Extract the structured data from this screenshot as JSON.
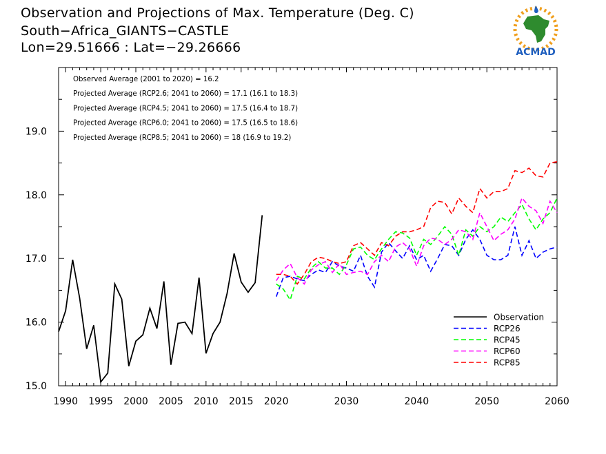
{
  "title": {
    "line1": "Observation and Projections of Max. Temperature (Deg. C)",
    "line2": "South−Africa_GIANTS−CASTLE",
    "line3": "Lon=29.51666 : Lat=−29.26666"
  },
  "logo": {
    "text": "ACMAD",
    "icon": "acmad-africa-logo"
  },
  "colors": {
    "Observation": "#000000",
    "RCP26": "#0000ff",
    "RCP45": "#00ff00",
    "RCP60": "#ff00ff",
    "RCP85": "#ff0000",
    "logo_orange": "#f0a020",
    "logo_green": "#2e8b2e",
    "logo_blue": "#1f5fbf"
  },
  "chart_data": {
    "type": "line",
    "xlim": [
      1989,
      2060
    ],
    "ylim": [
      15.0,
      20.0
    ],
    "x_ticks": [
      1990,
      1995,
      2000,
      2005,
      2010,
      2015,
      2020,
      2030,
      2040,
      2050,
      2060
    ],
    "y_ticks": [
      "15.0",
      "16.0",
      "17.0",
      "18.0",
      "19.0"
    ],
    "grid": false,
    "legend_position": "bottom-right",
    "annotations": [
      "Observed Average (2001 to 2020) = 16.2",
      "Projected Average (RCP2.6; 2041 to 2060) = 17.1 (16.1 to 18.3)",
      "Projected Average (RCP4.5; 2041 to 2060) = 17.5 (16.4 to 18.7)",
      "Projected Average (RCP6.0; 2041 to 2060) = 17.5 (16.5 to 18.6)",
      "Projected Average (RCP8.5; 2041 to 2060) = 18 (16.9 to 19.2)"
    ],
    "series": [
      {
        "name": "Observation",
        "style": "solid",
        "x": [
          1989,
          1990,
          1991,
          1992,
          1993,
          1994,
          1995,
          1996,
          1997,
          1998,
          1999,
          2000,
          2001,
          2002,
          2003,
          2004,
          2005,
          2006,
          2007,
          2008,
          2009,
          2010,
          2011,
          2012,
          2013,
          2014,
          2015,
          2016,
          2017,
          2018,
          2019
        ],
        "y": [
          15.85,
          16.18,
          16.98,
          16.38,
          15.58,
          15.95,
          15.06,
          15.2,
          16.6,
          16.36,
          15.31,
          15.7,
          15.8,
          16.22,
          15.9,
          16.64,
          15.33,
          15.98,
          16.0,
          15.82,
          16.7,
          15.51,
          15.82,
          16.0,
          16.45,
          17.08,
          16.63,
          16.47,
          16.62,
          17.68,
          null
        ]
      },
      {
        "name": "RCP26",
        "style": "dashed",
        "x": [
          2020,
          2021,
          2022,
          2023,
          2024,
          2025,
          2026,
          2027,
          2028,
          2029,
          2030,
          2031,
          2032,
          2033,
          2034,
          2035,
          2036,
          2037,
          2038,
          2039,
          2040,
          2041,
          2042,
          2043,
          2044,
          2045,
          2046,
          2047,
          2048,
          2049,
          2050,
          2051,
          2052,
          2053,
          2054,
          2055,
          2056,
          2057,
          2058,
          2059,
          2060
        ],
        "y": [
          16.4,
          16.7,
          16.72,
          16.68,
          16.65,
          16.75,
          16.82,
          16.78,
          16.95,
          16.88,
          16.85,
          16.8,
          17.05,
          16.72,
          16.55,
          17.1,
          17.25,
          17.12,
          17.0,
          17.2,
          16.98,
          17.05,
          16.8,
          17.0,
          17.22,
          17.2,
          17.05,
          17.3,
          17.45,
          17.3,
          17.05,
          16.98,
          16.98,
          17.05,
          17.5,
          17.05,
          17.28,
          17.0,
          17.1,
          17.15,
          17.18
        ]
      },
      {
        "name": "RCP45",
        "style": "dashed",
        "x": [
          2020,
          2021,
          2022,
          2023,
          2024,
          2025,
          2026,
          2027,
          2028,
          2029,
          2030,
          2031,
          2032,
          2033,
          2034,
          2035,
          2036,
          2037,
          2038,
          2039,
          2040,
          2041,
          2042,
          2043,
          2044,
          2045,
          2046,
          2047,
          2048,
          2049,
          2050,
          2051,
          2052,
          2053,
          2054,
          2055,
          2056,
          2057,
          2058,
          2059,
          2060
        ],
        "y": [
          16.6,
          16.52,
          16.35,
          16.72,
          16.68,
          16.85,
          16.95,
          16.85,
          16.85,
          16.75,
          16.9,
          17.15,
          17.18,
          17.05,
          16.98,
          17.15,
          17.3,
          17.42,
          17.4,
          17.32,
          17.05,
          17.3,
          17.22,
          17.35,
          17.5,
          17.38,
          17.05,
          17.45,
          17.35,
          17.5,
          17.42,
          17.5,
          17.65,
          17.58,
          17.72,
          17.85,
          17.62,
          17.45,
          17.62,
          17.72,
          17.95
        ]
      },
      {
        "name": "RCP60",
        "style": "dashed",
        "x": [
          2020,
          2021,
          2022,
          2023,
          2024,
          2025,
          2026,
          2027,
          2028,
          2029,
          2030,
          2031,
          2032,
          2033,
          2034,
          2035,
          2036,
          2037,
          2038,
          2039,
          2040,
          2041,
          2042,
          2043,
          2044,
          2045,
          2046,
          2047,
          2048,
          2049,
          2050,
          2051,
          2052,
          2053,
          2054,
          2055,
          2056,
          2057,
          2058,
          2059,
          2060
        ],
        "y": [
          16.65,
          16.82,
          16.92,
          16.7,
          16.6,
          16.82,
          16.9,
          16.95,
          16.78,
          16.92,
          16.75,
          16.78,
          16.8,
          16.75,
          16.95,
          17.05,
          16.95,
          17.18,
          17.25,
          17.15,
          16.88,
          17.2,
          17.32,
          17.3,
          17.22,
          17.3,
          17.45,
          17.42,
          17.3,
          17.72,
          17.5,
          17.28,
          17.38,
          17.45,
          17.62,
          17.95,
          17.82,
          17.75,
          17.55,
          17.9,
          17.72
        ]
      },
      {
        "name": "RCP85",
        "style": "dashed",
        "x": [
          2020,
          2021,
          2022,
          2023,
          2024,
          2025,
          2026,
          2027,
          2028,
          2029,
          2030,
          2031,
          2032,
          2033,
          2034,
          2035,
          2036,
          2037,
          2038,
          2039,
          2040,
          2041,
          2042,
          2043,
          2044,
          2045,
          2046,
          2047,
          2048,
          2049,
          2050,
          2051,
          2052,
          2053,
          2054,
          2055,
          2056,
          2057,
          2058,
          2059,
          2060
        ],
        "y": [
          16.75,
          16.75,
          16.72,
          16.6,
          16.75,
          16.95,
          17.02,
          17.0,
          16.95,
          16.92,
          16.95,
          17.2,
          17.25,
          17.15,
          17.05,
          17.25,
          17.2,
          17.35,
          17.42,
          17.42,
          17.45,
          17.5,
          17.8,
          17.9,
          17.88,
          17.7,
          17.95,
          17.82,
          17.72,
          18.1,
          17.95,
          18.05,
          18.05,
          18.1,
          18.38,
          18.35,
          18.42,
          18.3,
          18.28,
          18.5,
          18.52
        ]
      }
    ]
  }
}
